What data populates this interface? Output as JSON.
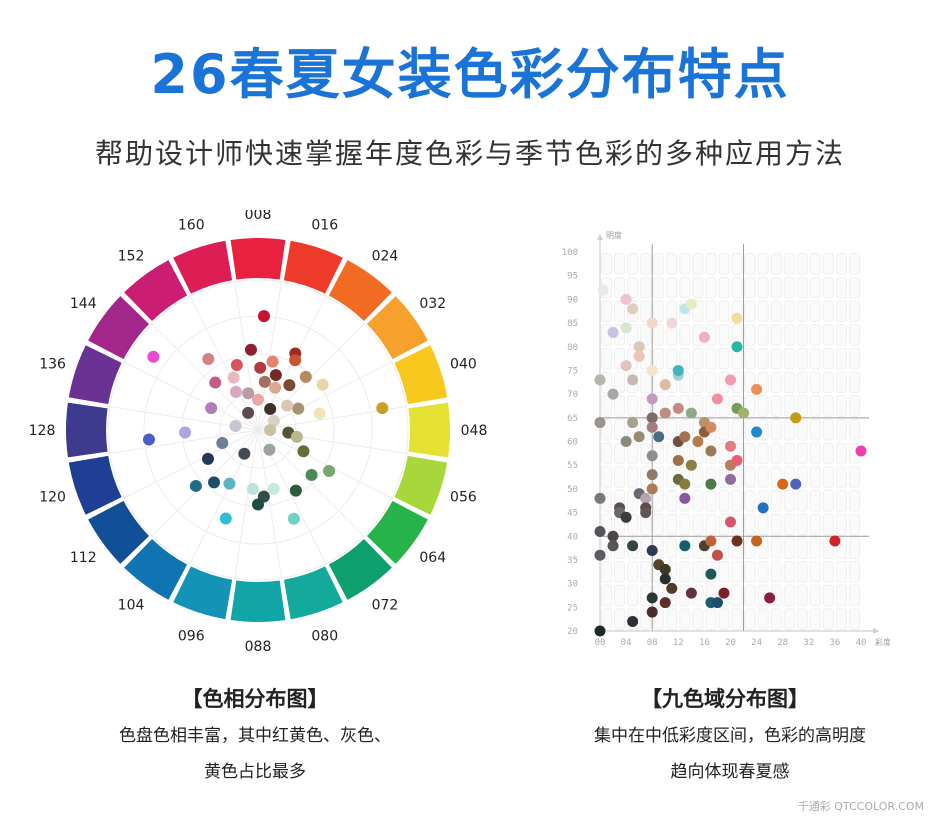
{
  "header": {
    "title": "26春夏女装色彩分布特点",
    "subtitle": "帮助设计师快速掌握年度色彩与季节色彩的多种应用方法"
  },
  "left": {
    "caption": "【色相分布图】",
    "desc_line1": "色盘色相丰富，其中红黄色、灰色、",
    "desc_line2": "黄色占比最多"
  },
  "right": {
    "caption": "【九色域分布图】",
    "desc_line1": "集中在中低彩度区间，色彩的高明度",
    "desc_line2": "趋向体现春夏感"
  },
  "watermark": "千通彩 QTCCOLOR.COM",
  "chart_data": [
    {
      "type": "scatter",
      "chart": "hue-wheel",
      "ring_labels": [
        "008",
        "016",
        "024",
        "032",
        "040",
        "048",
        "056",
        "064",
        "072",
        "080",
        "088",
        "096",
        "104",
        "112",
        "120",
        "128",
        "136",
        "144",
        "152",
        "160"
      ],
      "ring_colors": [
        "#e8213f",
        "#ee3a2a",
        "#f26b22",
        "#f7a12d",
        "#f9c81f",
        "#e5e132",
        "#a7d73a",
        "#25b34a",
        "#0e9f6e",
        "#13a99b",
        "#12a5a7",
        "#1493b8",
        "#0f74b1",
        "#114f97",
        "#1f3f94",
        "#3e3b8f",
        "#6a3294",
        "#a3268b",
        "#cb1e73",
        "#dc1e55"
      ],
      "points": [
        {
          "h": 3,
          "r": 0.75,
          "c": "#c8142e"
        },
        {
          "h": -5,
          "r": 0.53,
          "c": "#8f1f30"
        },
        {
          "h": -18,
          "r": 0.45,
          "c": "#d9545f"
        },
        {
          "h": 2,
          "r": 0.41,
          "c": "#b23a3f"
        },
        {
          "h": 12,
          "r": 0.46,
          "c": "#e0866f"
        },
        {
          "h": 26,
          "r": 0.56,
          "c": "#9b2c27"
        },
        {
          "h": 28,
          "r": 0.52,
          "c": "#c8552f"
        },
        {
          "h": 18,
          "r": 0.38,
          "c": "#6f2c22"
        },
        {
          "h": -35,
          "r": 0.57,
          "c": "#d57f86"
        },
        {
          "h": -25,
          "r": 0.38,
          "c": "#e8b7c2"
        },
        {
          "h": 8,
          "r": 0.32,
          "c": "#a46f60"
        },
        {
          "h": 22,
          "r": 0.3,
          "c": "#d9a891"
        },
        {
          "h": 35,
          "r": 0.36,
          "c": "#7d4a33"
        },
        {
          "h": 42,
          "r": 0.47,
          "c": "#b58a5d"
        },
        {
          "h": 55,
          "r": 0.52,
          "c": "#e9d6a3"
        },
        {
          "h": 80,
          "r": 0.83,
          "c": "#c9a022"
        },
        {
          "h": 62,
          "r": 0.3,
          "c": "#a89274"
        },
        {
          "h": 75,
          "r": 0.42,
          "c": "#efe3c1"
        },
        {
          "h": 50,
          "r": 0.25,
          "c": "#dac7b2"
        },
        {
          "h": 30,
          "r": 0.16,
          "c": "#3f2f28"
        },
        {
          "h": 95,
          "r": 0.2,
          "c": "#5a5235"
        },
        {
          "h": 100,
          "r": 0.26,
          "c": "#b7b68c"
        },
        {
          "h": 115,
          "r": 0.33,
          "c": "#6b6a3a"
        },
        {
          "h": 120,
          "r": 0.54,
          "c": "#79a76b"
        },
        {
          "h": 130,
          "r": 0.46,
          "c": "#4a8a56"
        },
        {
          "h": 148,
          "r": 0.47,
          "c": "#2c5b3d"
        },
        {
          "h": 158,
          "r": 0.63,
          "c": "#6fd3c4"
        },
        {
          "h": 165,
          "r": 0.4,
          "c": "#c4e9dd"
        },
        {
          "h": 175,
          "r": 0.44,
          "c": "#2f4f48"
        },
        {
          "h": 180,
          "r": 0.49,
          "c": "#1f4d42"
        },
        {
          "h": 185,
          "r": 0.39,
          "c": "#bfe0e0"
        },
        {
          "h": 200,
          "r": 0.62,
          "c": "#32bfd6"
        },
        {
          "h": 208,
          "r": 0.4,
          "c": "#5fb2c3"
        },
        {
          "h": 220,
          "r": 0.45,
          "c": "#1c4e6a"
        },
        {
          "h": 228,
          "r": 0.55,
          "c": "#1f6b8a"
        },
        {
          "h": 240,
          "r": 0.38,
          "c": "#22375a"
        },
        {
          "h": 250,
          "r": 0.25,
          "c": "#6c7f95"
        },
        {
          "h": 265,
          "r": 0.72,
          "c": "#4b5ec4"
        },
        {
          "h": 268,
          "r": 0.48,
          "c": "#b0a3e2"
        },
        {
          "h": 295,
          "r": 0.34,
          "c": "#ac7fb7"
        },
        {
          "h": 305,
          "r": 0.84,
          "c": "#e84bd3"
        },
        {
          "h": 318,
          "r": 0.42,
          "c": "#c45a8e"
        },
        {
          "h": 330,
          "r": 0.29,
          "c": "#d8a7c1"
        },
        {
          "h": 345,
          "r": 0.25,
          "c": "#b99aa6"
        },
        {
          "h": 210,
          "r": 0.18,
          "c": "#444b55"
        },
        {
          "h": 150,
          "r": 0.15,
          "c": "#9aa49b"
        },
        {
          "h": 60,
          "r": 0.12,
          "c": "#d8d2c5"
        },
        {
          "h": 280,
          "r": 0.15,
          "c": "#c9c4d1"
        },
        {
          "h": 330,
          "r": 0.13,
          "c": "#5d4b51"
        },
        {
          "h": 90,
          "r": 0.08,
          "c": "#c9c1a6"
        },
        {
          "h": 0,
          "r": 0.2,
          "c": "#e9a6a9"
        }
      ]
    },
    {
      "type": "scatter",
      "chart": "nine-zone",
      "xlabel": "彩度",
      "ylabel": "明度",
      "xlim": [
        0,
        40
      ],
      "ylim": [
        20,
        100
      ],
      "x_ticks": [
        "00",
        "04",
        "08",
        "12",
        "16",
        "20",
        "24",
        "28",
        "32",
        "36",
        "40"
      ],
      "y_ticks": [
        "20",
        "25",
        "30",
        "35",
        "40",
        "45",
        "50",
        "55",
        "60",
        "65",
        "70",
        "75",
        "80",
        "85",
        "90",
        "95",
        "100"
      ],
      "dividers": {
        "x": [
          8,
          22
        ],
        "y": [
          40,
          65
        ]
      },
      "points": [
        {
          "x": 0.5,
          "y": 92,
          "c": "#e8e8ee"
        },
        {
          "x": 2,
          "y": 83,
          "c": "#c9c0e6"
        },
        {
          "x": 4,
          "y": 84,
          "c": "#d7e7cf"
        },
        {
          "x": 4,
          "y": 90,
          "c": "#f1c2d6"
        },
        {
          "x": 5,
          "y": 88,
          "c": "#ddd1bb"
        },
        {
          "x": 6,
          "y": 80,
          "c": "#d9c7b7"
        },
        {
          "x": 8,
          "y": 85,
          "c": "#f3d6c8"
        },
        {
          "x": 11,
          "y": 85,
          "c": "#f1d6dc"
        },
        {
          "x": 13,
          "y": 88,
          "c": "#bfe7ea"
        },
        {
          "x": 14,
          "y": 89,
          "c": "#e8eac1"
        },
        {
          "x": 16,
          "y": 82,
          "c": "#f0b2c0"
        },
        {
          "x": 21,
          "y": 86,
          "c": "#f4dc9a"
        },
        {
          "x": 21,
          "y": 80,
          "c": "#25b9a5"
        },
        {
          "x": 4,
          "y": 76,
          "c": "#e3c3be"
        },
        {
          "x": 6,
          "y": 78,
          "c": "#e7c6b6"
        },
        {
          "x": 8,
          "y": 75,
          "c": "#f1e5c7"
        },
        {
          "x": 12,
          "y": 74,
          "c": "#9fd0d6"
        },
        {
          "x": 12,
          "y": 75,
          "c": "#3fb5c1"
        },
        {
          "x": 0,
          "y": 73,
          "c": "#b8b4ae"
        },
        {
          "x": 2,
          "y": 70,
          "c": "#a9a6a6"
        },
        {
          "x": 5,
          "y": 73,
          "c": "#c8b9b0"
        },
        {
          "x": 10,
          "y": 72,
          "c": "#e0b9a2"
        },
        {
          "x": 8,
          "y": 69,
          "c": "#c59ac1"
        },
        {
          "x": 18,
          "y": 69,
          "c": "#ef90a3"
        },
        {
          "x": 20,
          "y": 73,
          "c": "#f39bb0"
        },
        {
          "x": 24,
          "y": 71,
          "c": "#ec8e58"
        },
        {
          "x": 0,
          "y": 64,
          "c": "#9a948d"
        },
        {
          "x": 5,
          "y": 64,
          "c": "#a7a28a"
        },
        {
          "x": 8,
          "y": 65,
          "c": "#7c6b6a"
        },
        {
          "x": 10,
          "y": 66,
          "c": "#bd8c7f"
        },
        {
          "x": 12,
          "y": 67,
          "c": "#c38b82"
        },
        {
          "x": 14,
          "y": 66,
          "c": "#91a984"
        },
        {
          "x": 16,
          "y": 64,
          "c": "#b7906d"
        },
        {
          "x": 21,
          "y": 67,
          "c": "#7a9b58"
        },
        {
          "x": 22,
          "y": 66,
          "c": "#a1b26b"
        },
        {
          "x": 30,
          "y": 65,
          "c": "#c79b17"
        },
        {
          "x": 4,
          "y": 60,
          "c": "#8a8a7a"
        },
        {
          "x": 6,
          "y": 61,
          "c": "#978b71"
        },
        {
          "x": 8,
          "y": 63,
          "c": "#a47b85"
        },
        {
          "x": 9,
          "y": 61,
          "c": "#4a6d84"
        },
        {
          "x": 12,
          "y": 60,
          "c": "#6c5040"
        },
        {
          "x": 13,
          "y": 61,
          "c": "#a4724f"
        },
        {
          "x": 15,
          "y": 60,
          "c": "#b77a4a"
        },
        {
          "x": 16,
          "y": 62,
          "c": "#8a5e3a"
        },
        {
          "x": 17,
          "y": 63,
          "c": "#d48a63"
        },
        {
          "x": 20,
          "y": 59,
          "c": "#e27b84"
        },
        {
          "x": 24,
          "y": 62,
          "c": "#1b8ad1"
        },
        {
          "x": 8,
          "y": 57,
          "c": "#8d8c8f"
        },
        {
          "x": 12,
          "y": 56,
          "c": "#a06f43"
        },
        {
          "x": 14,
          "y": 55,
          "c": "#8e7f47"
        },
        {
          "x": 17,
          "y": 58,
          "c": "#9a7b55"
        },
        {
          "x": 20,
          "y": 55,
          "c": "#ba7b5c"
        },
        {
          "x": 21,
          "y": 56,
          "c": "#e75f74"
        },
        {
          "x": 40,
          "y": 58,
          "c": "#ee3fa9"
        },
        {
          "x": 0,
          "y": 48,
          "c": "#7c7778"
        },
        {
          "x": 6,
          "y": 49,
          "c": "#6f6675"
        },
        {
          "x": 8,
          "y": 50,
          "c": "#ab7a58"
        },
        {
          "x": 7,
          "y": 48,
          "c": "#b5a4b5"
        },
        {
          "x": 8,
          "y": 53,
          "c": "#8f7a66"
        },
        {
          "x": 12,
          "y": 52,
          "c": "#6b6a42"
        },
        {
          "x": 13,
          "y": 51,
          "c": "#857e3d"
        },
        {
          "x": 13,
          "y": 48,
          "c": "#86569f"
        },
        {
          "x": 17,
          "y": 51,
          "c": "#4e7a48"
        },
        {
          "x": 20,
          "y": 52,
          "c": "#8e6ba2"
        },
        {
          "x": 28,
          "y": 51,
          "c": "#d56716"
        },
        {
          "x": 30,
          "y": 51,
          "c": "#4f63ba"
        },
        {
          "x": 25,
          "y": 46,
          "c": "#1e71c5"
        },
        {
          "x": 3,
          "y": 46,
          "c": "#585050"
        },
        {
          "x": 3,
          "y": 45,
          "c": "#6c6768"
        },
        {
          "x": 4,
          "y": 44,
          "c": "#3c3c42"
        },
        {
          "x": 7,
          "y": 46,
          "c": "#574f4a"
        },
        {
          "x": 7,
          "y": 45,
          "c": "#665357"
        },
        {
          "x": 20,
          "y": 43,
          "c": "#d7556a"
        },
        {
          "x": 0,
          "y": 41,
          "c": "#57535a"
        },
        {
          "x": 2,
          "y": 40,
          "c": "#4a4649"
        },
        {
          "x": 2,
          "y": 38,
          "c": "#5b5459"
        },
        {
          "x": 0,
          "y": 36,
          "c": "#5d5d64"
        },
        {
          "x": 5,
          "y": 38,
          "c": "#35463a"
        },
        {
          "x": 8,
          "y": 37,
          "c": "#2c3a55"
        },
        {
          "x": 13,
          "y": 38,
          "c": "#155c6c"
        },
        {
          "x": 16,
          "y": 38,
          "c": "#4f3f2d"
        },
        {
          "x": 17,
          "y": 39,
          "c": "#c0623a"
        },
        {
          "x": 18,
          "y": 36,
          "c": "#c14f4a"
        },
        {
          "x": 21,
          "y": 39,
          "c": "#6e2f20"
        },
        {
          "x": 24,
          "y": 39,
          "c": "#c7631c"
        },
        {
          "x": 36,
          "y": 39,
          "c": "#d41f2c"
        },
        {
          "x": 9,
          "y": 34,
          "c": "#574529"
        },
        {
          "x": 10,
          "y": 33,
          "c": "#3e3a27"
        },
        {
          "x": 10,
          "y": 31,
          "c": "#2b2d2b"
        },
        {
          "x": 11,
          "y": 29,
          "c": "#4b3d2d"
        },
        {
          "x": 8,
          "y": 27,
          "c": "#2a3a3a"
        },
        {
          "x": 8,
          "y": 24,
          "c": "#4b2b2d"
        },
        {
          "x": 10,
          "y": 26,
          "c": "#5c2e2a"
        },
        {
          "x": 14,
          "y": 28,
          "c": "#62333b"
        },
        {
          "x": 17,
          "y": 32,
          "c": "#1a5a55"
        },
        {
          "x": 17,
          "y": 26,
          "c": "#1a5f6a"
        },
        {
          "x": 18,
          "y": 26,
          "c": "#1d4f6f"
        },
        {
          "x": 19,
          "y": 28,
          "c": "#7d1f2a"
        },
        {
          "x": 26,
          "y": 27,
          "c": "#8a1f40"
        },
        {
          "x": 5,
          "y": 22,
          "c": "#2f2e39"
        },
        {
          "x": 0,
          "y": 20,
          "c": "#1d2a26"
        }
      ]
    }
  ]
}
